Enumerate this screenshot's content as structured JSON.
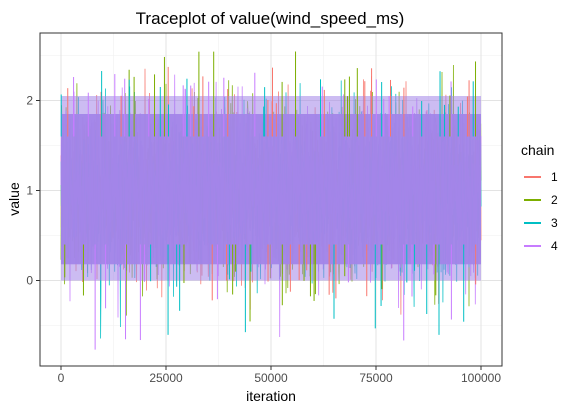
{
  "chart_data": {
    "type": "line",
    "title": "Traceplot of  value(wind_speed_ms)",
    "xlabel": "iteration",
    "ylabel": "value",
    "xlim": [
      -5000,
      105000
    ],
    "ylim": [
      -0.95,
      2.75
    ],
    "x_ticks": [
      0,
      25000,
      50000,
      75000,
      100000
    ],
    "x_tick_labels": [
      "0",
      "25000",
      "50000",
      "75000",
      "100000"
    ],
    "y_ticks": [
      0,
      1,
      2
    ],
    "y_tick_labels": [
      "0",
      "1",
      "2"
    ],
    "grid": true,
    "legend_position": "right",
    "legend_title": "chain",
    "series": [
      {
        "name": "1",
        "color": "#F8766D",
        "center": 1.0,
        "min": -0.68,
        "max": 2.4
      },
      {
        "name": "2",
        "color": "#7CAE00",
        "center": 1.0,
        "min": -0.5,
        "max": 2.62
      },
      {
        "name": "3",
        "color": "#00BFC4",
        "center": 1.0,
        "min": -0.65,
        "max": 2.35
      },
      {
        "name": "4",
        "color": "#C77CFF",
        "center": 1.0,
        "min": -0.8,
        "max": 2.33
      }
    ],
    "overlap_fill_color": "#A285E8",
    "iterations": [
      0,
      100000
    ]
  }
}
